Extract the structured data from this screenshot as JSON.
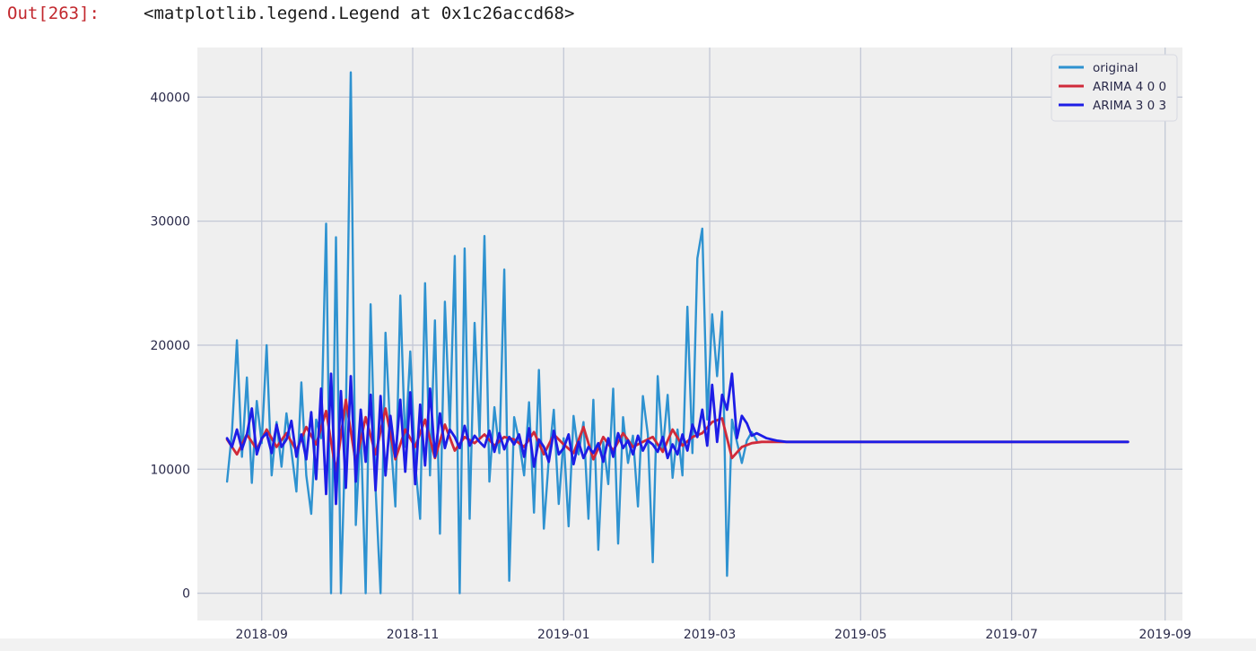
{
  "cell": {
    "prompt": "Out[263]:",
    "output_text": "<matplotlib.legend.Legend at 0x1c26accd68>"
  },
  "chart_data": {
    "type": "line",
    "title": "",
    "xlabel": "",
    "ylabel": "",
    "x_axis": {
      "kind": "date",
      "range": [
        "2018-08-06",
        "2019-09-08"
      ],
      "ticks": [
        "2018-09-01",
        "2018-11-01",
        "2019-01-01",
        "2019-03-01",
        "2019-05-01",
        "2019-07-01",
        "2019-09-01"
      ],
      "tick_labels": [
        "2018-09",
        "2018-11",
        "2019-01",
        "2019-03",
        "2019-05",
        "2019-07",
        "2019-09"
      ]
    },
    "y_axis": {
      "range": [
        -2200,
        44000
      ],
      "ticks": [
        0,
        10000,
        20000,
        30000,
        40000
      ],
      "tick_labels": [
        "0",
        "10000",
        "20000",
        "30000",
        "40000"
      ]
    },
    "grid": true,
    "legend_position": "top-right",
    "background": "#efefef",
    "series": [
      {
        "name": "original",
        "color": "#2e92d0",
        "x": [
          "2018-08-18",
          "2018-08-20",
          "2018-08-22",
          "2018-08-24",
          "2018-08-26",
          "2018-08-28",
          "2018-08-30",
          "2018-09-01",
          "2018-09-03",
          "2018-09-05",
          "2018-09-07",
          "2018-09-09",
          "2018-09-11",
          "2018-09-13",
          "2018-09-15",
          "2018-09-17",
          "2018-09-19",
          "2018-09-21",
          "2018-09-23",
          "2018-09-25",
          "2018-09-27",
          "2018-09-29",
          "2018-10-01",
          "2018-10-03",
          "2018-10-05",
          "2018-10-07",
          "2018-10-09",
          "2018-10-11",
          "2018-10-13",
          "2018-10-15",
          "2018-10-17",
          "2018-10-19",
          "2018-10-21",
          "2018-10-23",
          "2018-10-25",
          "2018-10-27",
          "2018-10-29",
          "2018-10-31",
          "2018-11-02",
          "2018-11-04",
          "2018-11-06",
          "2018-11-08",
          "2018-11-10",
          "2018-11-12",
          "2018-11-14",
          "2018-11-16",
          "2018-11-18",
          "2018-11-20",
          "2018-11-22",
          "2018-11-24",
          "2018-11-26",
          "2018-11-28",
          "2018-11-30",
          "2018-12-02",
          "2018-12-04",
          "2018-12-06",
          "2018-12-08",
          "2018-12-10",
          "2018-12-12",
          "2018-12-14",
          "2018-12-16",
          "2018-12-18",
          "2018-12-20",
          "2018-12-22",
          "2018-12-24",
          "2018-12-26",
          "2018-12-28",
          "2018-12-30",
          "2019-01-01",
          "2019-01-03",
          "2019-01-05",
          "2019-01-07",
          "2019-01-09",
          "2019-01-11",
          "2019-01-13",
          "2019-01-15",
          "2019-01-17",
          "2019-01-19",
          "2019-01-21",
          "2019-01-23",
          "2019-01-25",
          "2019-01-27",
          "2019-01-29",
          "2019-01-31",
          "2019-02-02",
          "2019-02-04",
          "2019-02-06",
          "2019-02-08",
          "2019-02-10",
          "2019-02-12",
          "2019-02-14",
          "2019-02-16",
          "2019-02-18",
          "2019-02-20",
          "2019-02-22",
          "2019-02-24",
          "2019-02-26",
          "2019-02-28",
          "2019-03-02",
          "2019-03-04",
          "2019-03-06",
          "2019-03-08",
          "2019-03-10",
          "2019-03-12",
          "2019-03-14",
          "2019-03-16",
          "2019-03-18",
          "2019-03-20"
        ],
        "y": [
          9000,
          13000,
          20400,
          11000,
          17400,
          8900,
          15500,
          12100,
          20000,
          9500,
          13800,
          10200,
          14500,
          11500,
          8200,
          17000,
          9500,
          6400,
          14000,
          12500,
          29800,
          0,
          28700,
          0,
          14000,
          42000,
          5500,
          13500,
          0,
          23300,
          8500,
          0,
          21000,
          12800,
          7000,
          24000,
          11800,
          19500,
          10500,
          6000,
          25000,
          9500,
          22000,
          4800,
          23500,
          13300,
          27200,
          0,
          27800,
          6000,
          21800,
          12600,
          28800,
          9000,
          15000,
          11300,
          26100,
          1000,
          14200,
          12300,
          9500,
          15400,
          6500,
          18000,
          5200,
          10800,
          14800,
          7200,
          12500,
          5400,
          14300,
          11200,
          13800,
          6000,
          15600,
          3500,
          12200,
          8800,
          16500,
          4000,
          14200,
          10500,
          12700,
          7000,
          15900,
          12800,
          2500,
          17500,
          11500,
          16000,
          9300,
          13200,
          9500,
          23100,
          11300,
          27000,
          29400,
          14000,
          22500,
          17500,
          22700,
          1400,
          14000,
          12200,
          10500,
          12300,
          13000,
          12300
        ]
      },
      {
        "name": "ARIMA 4 0 0",
        "color": "#d02a3a",
        "x": [
          "2018-08-18",
          "2018-08-22",
          "2018-08-26",
          "2018-08-30",
          "2018-09-03",
          "2018-09-07",
          "2018-09-11",
          "2018-09-15",
          "2018-09-19",
          "2018-09-23",
          "2018-09-27",
          "2018-10-01",
          "2018-10-05",
          "2018-10-09",
          "2018-10-13",
          "2018-10-17",
          "2018-10-21",
          "2018-10-25",
          "2018-10-29",
          "2018-11-02",
          "2018-11-06",
          "2018-11-10",
          "2018-11-14",
          "2018-11-18",
          "2018-11-22",
          "2018-11-26",
          "2018-11-30",
          "2018-12-04",
          "2018-12-08",
          "2018-12-12",
          "2018-12-16",
          "2018-12-20",
          "2018-12-24",
          "2018-12-28",
          "2019-01-01",
          "2019-01-05",
          "2019-01-09",
          "2019-01-13",
          "2019-01-17",
          "2019-01-21",
          "2019-01-25",
          "2019-01-29",
          "2019-02-02",
          "2019-02-06",
          "2019-02-10",
          "2019-02-14",
          "2019-02-18",
          "2019-02-22",
          "2019-02-26",
          "2019-03-02",
          "2019-03-06",
          "2019-03-10",
          "2019-03-14",
          "2019-03-18",
          "2019-03-22",
          "2019-03-26",
          "2019-04-01",
          "2019-04-15",
          "2019-05-01",
          "2019-06-01",
          "2019-07-01",
          "2019-08-17"
        ],
        "y": [
          12400,
          11200,
          12800,
          11600,
          13200,
          11800,
          12900,
          11500,
          13400,
          12000,
          14700,
          9800,
          15600,
          10500,
          14200,
          11200,
          14900,
          10800,
          13200,
          11800,
          14000,
          10900,
          13600,
          11500,
          12600,
          12100,
          12800,
          11900,
          12600,
          12400,
          11800,
          13000,
          11200,
          12800,
          12000,
          11300,
          13400,
          10800,
          12600,
          11500,
          12900,
          11800,
          12200,
          12600,
          11400,
          13200,
          11900,
          12600,
          12900,
          13800,
          14100,
          10900,
          11800,
          12100,
          12200,
          12200,
          12200,
          12200,
          12200,
          12200,
          12200,
          12200
        ]
      },
      {
        "name": "ARIMA 3 0 3",
        "color": "#1d1de6",
        "x": [
          "2018-08-18",
          "2018-08-20",
          "2018-08-22",
          "2018-08-24",
          "2018-08-26",
          "2018-08-28",
          "2018-08-30",
          "2018-09-01",
          "2018-09-03",
          "2018-09-05",
          "2018-09-07",
          "2018-09-09",
          "2018-09-11",
          "2018-09-13",
          "2018-09-15",
          "2018-09-17",
          "2018-09-19",
          "2018-09-21",
          "2018-09-23",
          "2018-09-25",
          "2018-09-27",
          "2018-09-29",
          "2018-10-01",
          "2018-10-03",
          "2018-10-05",
          "2018-10-07",
          "2018-10-09",
          "2018-10-11",
          "2018-10-13",
          "2018-10-15",
          "2018-10-17",
          "2018-10-19",
          "2018-10-21",
          "2018-10-23",
          "2018-10-25",
          "2018-10-27",
          "2018-10-29",
          "2018-10-31",
          "2018-11-02",
          "2018-11-04",
          "2018-11-06",
          "2018-11-08",
          "2018-11-10",
          "2018-11-12",
          "2018-11-14",
          "2018-11-16",
          "2018-11-18",
          "2018-11-20",
          "2018-11-22",
          "2018-11-24",
          "2018-11-26",
          "2018-11-28",
          "2018-11-30",
          "2018-12-02",
          "2018-12-04",
          "2018-12-06",
          "2018-12-08",
          "2018-12-10",
          "2018-12-12",
          "2018-12-14",
          "2018-12-16",
          "2018-12-18",
          "2018-12-20",
          "2018-12-22",
          "2018-12-24",
          "2018-12-26",
          "2018-12-28",
          "2018-12-30",
          "2019-01-01",
          "2019-01-03",
          "2019-01-05",
          "2019-01-07",
          "2019-01-09",
          "2019-01-11",
          "2019-01-13",
          "2019-01-15",
          "2019-01-17",
          "2019-01-19",
          "2019-01-21",
          "2019-01-23",
          "2019-01-25",
          "2019-01-27",
          "2019-01-29",
          "2019-01-31",
          "2019-02-02",
          "2019-02-04",
          "2019-02-06",
          "2019-02-08",
          "2019-02-10",
          "2019-02-12",
          "2019-02-14",
          "2019-02-16",
          "2019-02-18",
          "2019-02-20",
          "2019-02-22",
          "2019-02-24",
          "2019-02-26",
          "2019-02-28",
          "2019-03-02",
          "2019-03-04",
          "2019-03-06",
          "2019-03-08",
          "2019-03-10",
          "2019-03-12",
          "2019-03-14",
          "2019-03-16",
          "2019-03-18",
          "2019-03-20",
          "2019-03-24",
          "2019-03-28",
          "2019-04-01",
          "2019-04-08",
          "2019-04-20",
          "2019-05-01",
          "2019-06-01",
          "2019-07-01",
          "2019-08-17"
        ],
        "y": [
          12500,
          11800,
          13200,
          11600,
          12800,
          14900,
          11200,
          12500,
          12900,
          11300,
          13600,
          11800,
          12400,
          13900,
          11000,
          12800,
          10800,
          14600,
          9200,
          16500,
          8000,
          17700,
          7200,
          16300,
          8500,
          17500,
          9000,
          14800,
          10600,
          16000,
          8300,
          15900,
          9500,
          14300,
          11000,
          15600,
          9800,
          16200,
          8800,
          15200,
          10300,
          16500,
          11000,
          14500,
          11700,
          13200,
          12600,
          11700,
          13500,
          11900,
          12700,
          12200,
          11800,
          13100,
          11400,
          12900,
          11600,
          12600,
          12000,
          12800,
          11000,
          13300,
          10200,
          12400,
          11800,
          10600,
          13100,
          11200,
          11700,
          12800,
          10400,
          12200,
          10900,
          11800,
          11300,
          12100,
          10600,
          12500,
          11000,
          12900,
          11700,
          12300,
          11200,
          12700,
          11500,
          12300,
          12000,
          11400,
          12600,
          10900,
          12000,
          11200,
          12800,
          11500,
          13600,
          12600,
          14800,
          11900,
          16800,
          12200,
          16000,
          14800,
          17700,
          12500,
          14300,
          13700,
          12700,
          12900,
          12500,
          12300,
          12200,
          12200,
          12200,
          12200,
          12200,
          12200,
          12200
        ]
      }
    ]
  }
}
